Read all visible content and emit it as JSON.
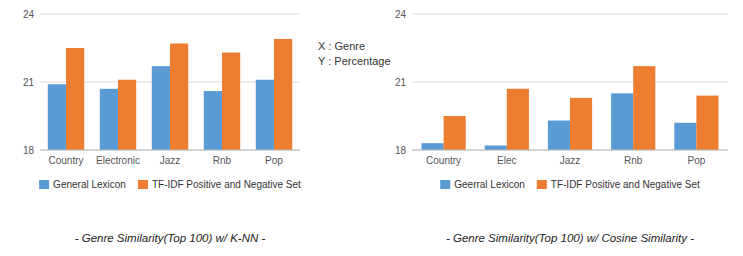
{
  "chart_data": [
    {
      "type": "bar",
      "title": "- Genre Similarity(Top 100) w/ K-NN -",
      "annotation": "X : Genre\nY : Percentage",
      "categories": [
        "Country",
        "Electronic",
        "Jazz",
        "Rnb",
        "Pop"
      ],
      "series": [
        {
          "name": "General Lexicon",
          "color": "#5B9BD5",
          "values": [
            20.9,
            20.7,
            21.7,
            20.6,
            21.1
          ]
        },
        {
          "name": "TF-IDF Positive and Negative Set",
          "color": "#ED7D31",
          "values": [
            22.5,
            21.1,
            22.7,
            22.3,
            22.9
          ]
        }
      ],
      "ylim": [
        18,
        24
      ],
      "yticks": [
        18,
        21,
        24
      ],
      "grid": true,
      "legend": "bottom"
    },
    {
      "type": "bar",
      "title": "- Genre Similarity(Top 100) w/ Cosine Similarity -",
      "categories": [
        "Country",
        "Elec",
        "Jazz",
        "Rnb",
        "Pop"
      ],
      "series": [
        {
          "name": "Geerral Lexicon",
          "color": "#5B9BD5",
          "values": [
            18.3,
            18.2,
            19.3,
            20.5,
            19.2
          ]
        },
        {
          "name": "TF-IDF Positive and Negative Set",
          "color": "#ED7D31",
          "values": [
            19.5,
            20.7,
            20.3,
            21.7,
            20.4
          ]
        }
      ],
      "ylim": [
        18,
        24
      ],
      "yticks": [
        18,
        21,
        24
      ],
      "grid": true,
      "legend": "bottom"
    }
  ]
}
